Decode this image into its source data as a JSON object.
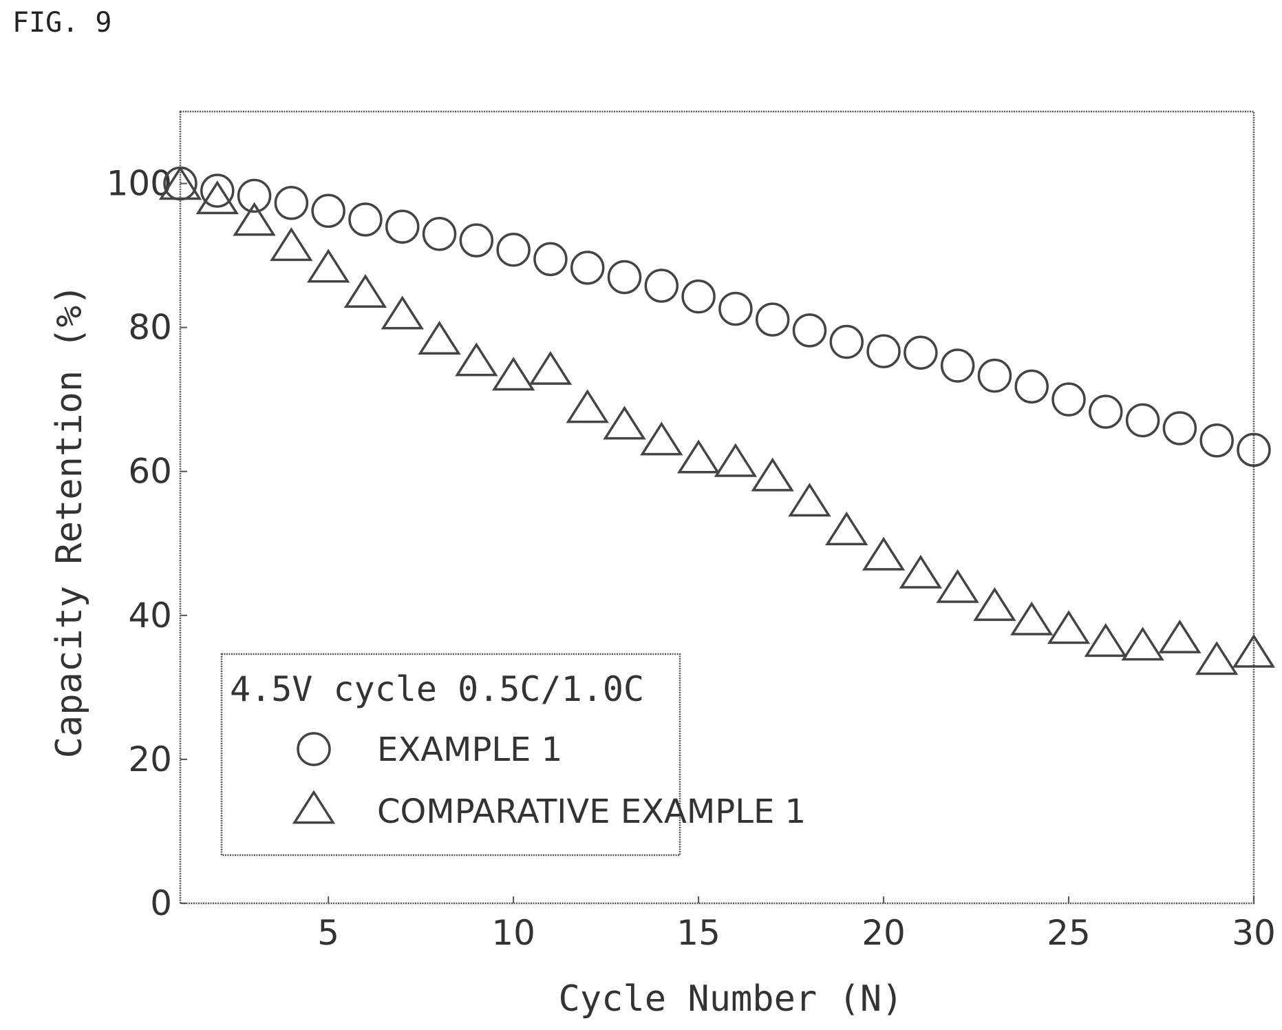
{
  "figure_label": "FIG. 9",
  "chart_data": {
    "type": "scatter",
    "title": "",
    "xlabel": "Cycle Number (N)",
    "ylabel": "Capacity Retention (%)",
    "xlim": [
      1,
      30
    ],
    "ylim": [
      0,
      110
    ],
    "xticks": [
      5,
      10,
      15,
      20,
      25,
      30
    ],
    "yticks": [
      0,
      20,
      40,
      60,
      80,
      100
    ],
    "grid": false,
    "legend": {
      "title": "4.5V cycle 0.5C/1.0C",
      "placement": "bottom-left"
    },
    "series": [
      {
        "name": "EXAMPLE 1",
        "marker": "circle",
        "x": [
          1,
          2,
          3,
          4,
          5,
          6,
          7,
          8,
          9,
          10,
          11,
          12,
          13,
          14,
          15,
          16,
          17,
          18,
          19,
          20,
          21,
          22,
          23,
          24,
          25,
          26,
          27,
          28,
          29,
          30
        ],
        "values": [
          100,
          99,
          98.3,
          97.3,
          96.2,
          95,
          94,
          93,
          92.1,
          90.8,
          89.5,
          88.3,
          87,
          85.8,
          84.3,
          82.6,
          81.1,
          79.6,
          78,
          76.7,
          76.5,
          74.7,
          73.3,
          71.8,
          70,
          68.3,
          67.1,
          66,
          64.3,
          63
        ]
      },
      {
        "name": "COMPARATIVE EXAMPLE 1",
        "marker": "triangle",
        "x": [
          1,
          2,
          3,
          4,
          5,
          6,
          7,
          8,
          9,
          10,
          11,
          12,
          13,
          14,
          15,
          16,
          17,
          18,
          19,
          20,
          21,
          22,
          23,
          24,
          25,
          26,
          27,
          28,
          29,
          30
        ],
        "values": [
          99.5,
          97.5,
          94.5,
          91,
          88,
          84.5,
          81.5,
          78,
          75,
          73,
          73.8,
          68.5,
          66.2,
          64,
          61.5,
          61,
          59,
          55.5,
          51.5,
          48,
          45.5,
          43.5,
          41,
          39,
          37.8,
          36,
          35.5,
          36.5,
          33.5,
          34.5
        ]
      }
    ]
  }
}
